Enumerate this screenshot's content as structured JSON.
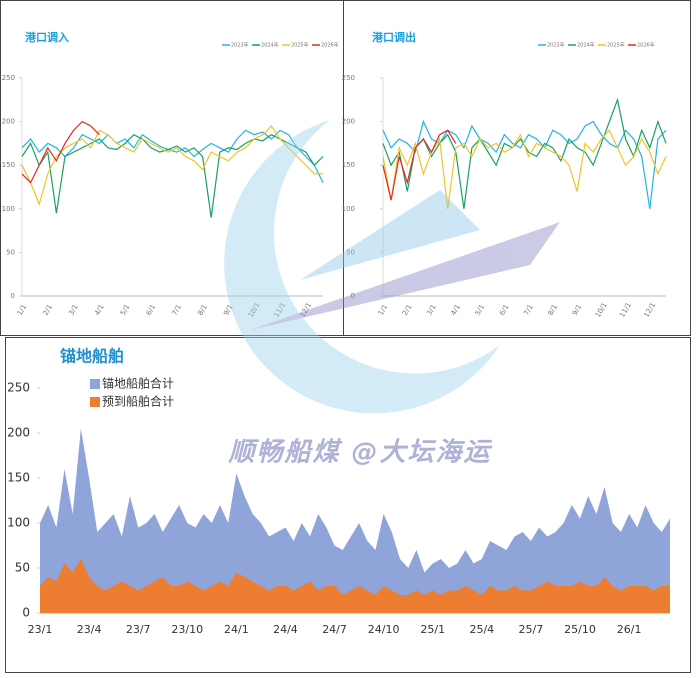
{
  "watermark": "顺畅船煤 @大坛海运",
  "chart_data": [
    {
      "type": "line",
      "title": "港口调入",
      "categories": [
        "1/1",
        null,
        null,
        "2/1",
        null,
        null,
        "3/1",
        null,
        null,
        "4/1",
        null,
        null,
        "5/1",
        null,
        null,
        "6/1",
        null,
        null,
        "7/1",
        null,
        null,
        "8/1",
        null,
        null,
        "9/1",
        null,
        null,
        "10/1",
        null,
        null,
        "11/1",
        null,
        null,
        "12/1",
        null,
        null
      ],
      "ylim": [
        0,
        250
      ],
      "yticks": [
        0,
        50,
        100,
        150,
        200,
        250
      ],
      "series": [
        {
          "name": "2023年",
          "color": "#22b4e4",
          "values": [
            170,
            180,
            165,
            175,
            170,
            160,
            170,
            185,
            180,
            175,
            185,
            175,
            180,
            170,
            185,
            178,
            172,
            168,
            165,
            170,
            160,
            168,
            175,
            170,
            165,
            180,
            190,
            185,
            188,
            180,
            190,
            185,
            170,
            160,
            150,
            130
          ]
        },
        {
          "name": "2024年",
          "color": "#1aa060",
          "values": [
            160,
            175,
            150,
            165,
            95,
            160,
            165,
            170,
            175,
            180,
            170,
            168,
            175,
            185,
            180,
            170,
            165,
            168,
            172,
            165,
            170,
            160,
            90,
            165,
            170,
            168,
            175,
            180,
            178,
            185,
            180,
            175,
            170,
            165,
            150,
            160
          ]
        },
        {
          "name": "2025年",
          "color": "#f0c428",
          "values": [
            150,
            130,
            105,
            140,
            160,
            170,
            175,
            180,
            170,
            190,
            185,
            175,
            170,
            165,
            180,
            175,
            170,
            165,
            170,
            160,
            155,
            145,
            165,
            160,
            155,
            165,
            170,
            180,
            185,
            195,
            180,
            170,
            160,
            150,
            140,
            140
          ]
        },
        {
          "name": "2026年",
          "color": "#e42828",
          "values": [
            140,
            130,
            150,
            170,
            155,
            175,
            190,
            200,
            195,
            185,
            null,
            null,
            null,
            null,
            null,
            null,
            null,
            null,
            null,
            null,
            null,
            null,
            null,
            null,
            null,
            null,
            null,
            null,
            null,
            null,
            null,
            null,
            null,
            null,
            null,
            null
          ]
        }
      ]
    },
    {
      "type": "line",
      "title": "港口调出",
      "categories": [
        "1/1",
        null,
        null,
        "2/1",
        null,
        null,
        "3/1",
        null,
        null,
        "4/1",
        null,
        null,
        "5/1",
        null,
        null,
        "6/1",
        null,
        null,
        "7/1",
        null,
        null,
        "8/1",
        null,
        null,
        "9/1",
        null,
        null,
        "10/1",
        null,
        null,
        "11/1",
        null,
        null,
        "12/1",
        null,
        null
      ],
      "ylim": [
        0,
        250
      ],
      "yticks": [
        0,
        50,
        100,
        150,
        200,
        250
      ],
      "series": [
        {
          "name": "2023年",
          "color": "#22b4e4",
          "values": [
            190,
            170,
            180,
            175,
            165,
            200,
            180,
            175,
            190,
            185,
            170,
            195,
            180,
            175,
            165,
            185,
            175,
            170,
            185,
            180,
            170,
            190,
            185,
            175,
            180,
            195,
            200,
            185,
            175,
            170,
            190,
            180,
            160,
            100,
            180,
            190
          ]
        },
        {
          "name": "2024年",
          "color": "#1aa060",
          "values": [
            175,
            150,
            165,
            120,
            170,
            180,
            160,
            175,
            185,
            165,
            100,
            170,
            180,
            165,
            150,
            175,
            170,
            180,
            165,
            160,
            175,
            170,
            155,
            180,
            170,
            165,
            150,
            175,
            200,
            225,
            180,
            160,
            190,
            170,
            200,
            175
          ]
        },
        {
          "name": "2025年",
          "color": "#f0c428",
          "values": [
            160,
            110,
            170,
            150,
            175,
            140,
            165,
            180,
            100,
            170,
            175,
            160,
            180,
            170,
            175,
            165,
            170,
            185,
            160,
            175,
            170,
            165,
            160,
            150,
            120,
            175,
            165,
            180,
            190,
            170,
            150,
            160,
            180,
            165,
            140,
            160
          ]
        },
        {
          "name": "2026年",
          "color": "#e42828",
          "values": [
            150,
            110,
            160,
            130,
            170,
            180,
            165,
            185,
            190,
            175,
            null,
            null,
            null,
            null,
            null,
            null,
            null,
            null,
            null,
            null,
            null,
            null,
            null,
            null,
            null,
            null,
            null,
            null,
            null,
            null,
            null,
            null,
            null,
            null,
            null,
            null
          ]
        }
      ]
    },
    {
      "type": "area",
      "title": "锚地船舶",
      "categories": [
        "23/1",
        null,
        null,
        null,
        null,
        null,
        "23/4",
        null,
        null,
        null,
        null,
        null,
        "23/7",
        null,
        null,
        null,
        null,
        null,
        "23/10",
        null,
        null,
        null,
        null,
        null,
        "24/1",
        null,
        null,
        null,
        null,
        null,
        "24/4",
        null,
        null,
        null,
        null,
        null,
        "24/7",
        null,
        null,
        null,
        null,
        null,
        "24/10",
        null,
        null,
        null,
        null,
        null,
        "25/1",
        null,
        null,
        null,
        null,
        null,
        "25/4",
        null,
        null,
        null,
        null,
        null,
        "25/7",
        null,
        null,
        null,
        null,
        null,
        "25/10",
        null,
        null,
        null,
        null,
        null,
        "26/1",
        null,
        null,
        null,
        null,
        null
      ],
      "ylim": [
        0,
        250
      ],
      "yticks": [
        0,
        50,
        100,
        150,
        200,
        250
      ],
      "series": [
        {
          "name": "锚地船舶合计",
          "color": "#8fa4d8",
          "values": [
            100,
            120,
            95,
            160,
            110,
            205,
            150,
            90,
            100,
            110,
            85,
            130,
            95,
            100,
            110,
            90,
            105,
            120,
            100,
            95,
            110,
            100,
            120,
            100,
            155,
            130,
            110,
            100,
            85,
            90,
            95,
            80,
            100,
            85,
            110,
            95,
            75,
            70,
            85,
            100,
            80,
            70,
            110,
            90,
            60,
            50,
            70,
            45,
            55,
            60,
            50,
            55,
            70,
            55,
            60,
            80,
            75,
            70,
            85,
            90,
            80,
            95,
            85,
            90,
            100,
            120,
            105,
            130,
            110,
            140,
            100,
            90,
            110,
            95,
            120,
            100,
            90,
            105
          ]
        },
        {
          "name": "预到船舶合计",
          "color": "#ed7d31",
          "values": [
            30,
            40,
            35,
            55,
            45,
            60,
            40,
            30,
            25,
            30,
            35,
            30,
            25,
            30,
            35,
            40,
            30,
            30,
            35,
            30,
            25,
            30,
            35,
            30,
            45,
            40,
            35,
            30,
            25,
            30,
            30,
            25,
            30,
            35,
            25,
            30,
            30,
            20,
            25,
            30,
            25,
            20,
            30,
            25,
            20,
            20,
            25,
            20,
            25,
            20,
            25,
            25,
            30,
            25,
            20,
            30,
            25,
            25,
            30,
            25,
            25,
            30,
            35,
            30,
            30,
            30,
            35,
            30,
            30,
            40,
            30,
            25,
            30,
            30,
            30,
            25,
            30,
            30
          ]
        }
      ]
    }
  ]
}
